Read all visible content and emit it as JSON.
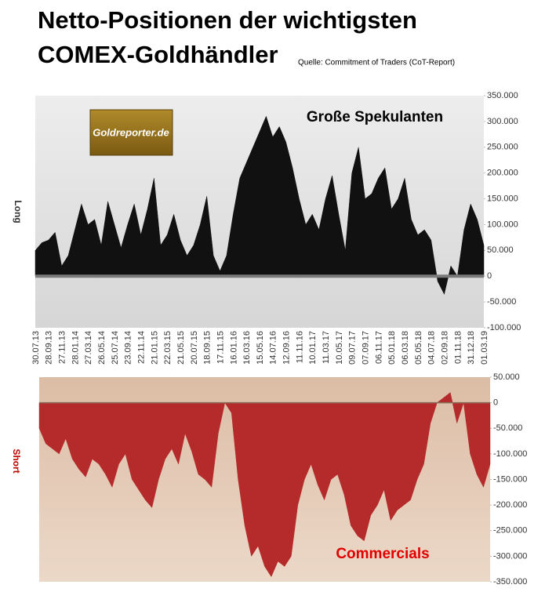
{
  "title": [
    "Netto-Positionen der wichtigsten",
    "COMEX-Goldhändler"
  ],
  "source": "Quelle: Commitment of Traders (CoT-Report)",
  "logo": "Goldreporter.de",
  "chart_data": [
    {
      "type": "area",
      "annotation": "Große Spekulanten",
      "y_label": "Long",
      "color": "#111111",
      "categories": [
        "30.07.13",
        null,
        "28.09.13",
        null,
        "27.11.13",
        null,
        "28.01.14",
        null,
        "27.03.14",
        null,
        "26.05.14",
        null,
        "25.07.14",
        null,
        "23.09.14",
        null,
        "22.11.14",
        null,
        "21.01.15",
        null,
        "22.03.15",
        null,
        "21.05.15",
        null,
        "20.07.15",
        null,
        "18.09.15",
        null,
        "17.11.15",
        null,
        "16.01.16",
        null,
        "16.03.16",
        null,
        "15.05.16",
        null,
        "14.07.16",
        null,
        "12.09.16",
        null,
        "11.11.16",
        null,
        "10.01.17",
        null,
        "11.03.17",
        null,
        "10.05.17",
        null,
        "09.07.17",
        null,
        "07.09.17",
        null,
        "06.11.17",
        null,
        "05.01.18",
        null,
        "06.03.18",
        null,
        "05.05.18",
        null,
        "04.07.18",
        null,
        "02.09.18",
        null,
        "01.11.18",
        null,
        "31.12.18",
        null,
        "01.03.19"
      ],
      "values": [
        50000,
        65000,
        70000,
        85000,
        20000,
        40000,
        90000,
        140000,
        100000,
        110000,
        60000,
        145000,
        100000,
        55000,
        100000,
        140000,
        80000,
        130000,
        190000,
        60000,
        80000,
        120000,
        70000,
        40000,
        60000,
        100000,
        155000,
        40000,
        10000,
        40000,
        120000,
        190000,
        220000,
        250000,
        280000,
        310000,
        270000,
        290000,
        260000,
        210000,
        150000,
        100000,
        120000,
        90000,
        150000,
        195000,
        120000,
        50000,
        200000,
        250000,
        150000,
        160000,
        190000,
        210000,
        130000,
        150000,
        190000,
        110000,
        80000,
        90000,
        70000,
        -10000,
        -35000,
        20000,
        0,
        90000,
        140000,
        110000,
        60000
      ],
      "ylim": [
        -100000,
        350000
      ],
      "yticks": [
        {
          "value": 350000,
          "label": "350.000"
        },
        {
          "value": 300000,
          "label": "300.000"
        },
        {
          "value": 250000,
          "label": "250.000"
        },
        {
          "value": 200000,
          "label": "200.000"
        },
        {
          "value": 150000,
          "label": "150.000"
        },
        {
          "value": 100000,
          "label": "100.000"
        },
        {
          "value": 50000,
          "label": "50.000"
        },
        0,
        {
          "value": -50000,
          "label": "-50.000"
        },
        {
          "value": -100000,
          "label": "-100.000"
        }
      ],
      "grid": false
    },
    {
      "type": "area",
      "annotation": "Commercials",
      "y_label": "Short",
      "color": "#b52a2a",
      "values": [
        -50000,
        -80000,
        -90000,
        -100000,
        -70000,
        -110000,
        -130000,
        -145000,
        -110000,
        -120000,
        -140000,
        -165000,
        -120000,
        -100000,
        -150000,
        -170000,
        -190000,
        -205000,
        -150000,
        -110000,
        -90000,
        -120000,
        -60000,
        -95000,
        -140000,
        -150000,
        -165000,
        -60000,
        0,
        -20000,
        -150000,
        -240000,
        -300000,
        -280000,
        -320000,
        -340000,
        -310000,
        -320000,
        -300000,
        -200000,
        -150000,
        -120000,
        -160000,
        -190000,
        -150000,
        -140000,
        -180000,
        -240000,
        -260000,
        -270000,
        -220000,
        -200000,
        -170000,
        -230000,
        -210000,
        -200000,
        -190000,
        -150000,
        -120000,
        -40000,
        0,
        10000,
        20000,
        -40000,
        0,
        -100000,
        -140000,
        -165000,
        -120000
      ],
      "ylim": [
        -350000,
        50000
      ],
      "yticks": [
        {
          "value": 50000,
          "label": "50.000"
        },
        0,
        {
          "value": -50000,
          "label": "-50.000"
        },
        {
          "value": -100000,
          "label": "-100.000"
        },
        {
          "value": -150000,
          "label": "-150.000"
        },
        {
          "value": -200000,
          "label": "-200.000"
        },
        {
          "value": -250000,
          "label": "-250.000"
        },
        {
          "value": -300000,
          "label": "-300.000"
        },
        {
          "value": -350000,
          "label": "-350.000"
        }
      ],
      "grid": false
    }
  ]
}
